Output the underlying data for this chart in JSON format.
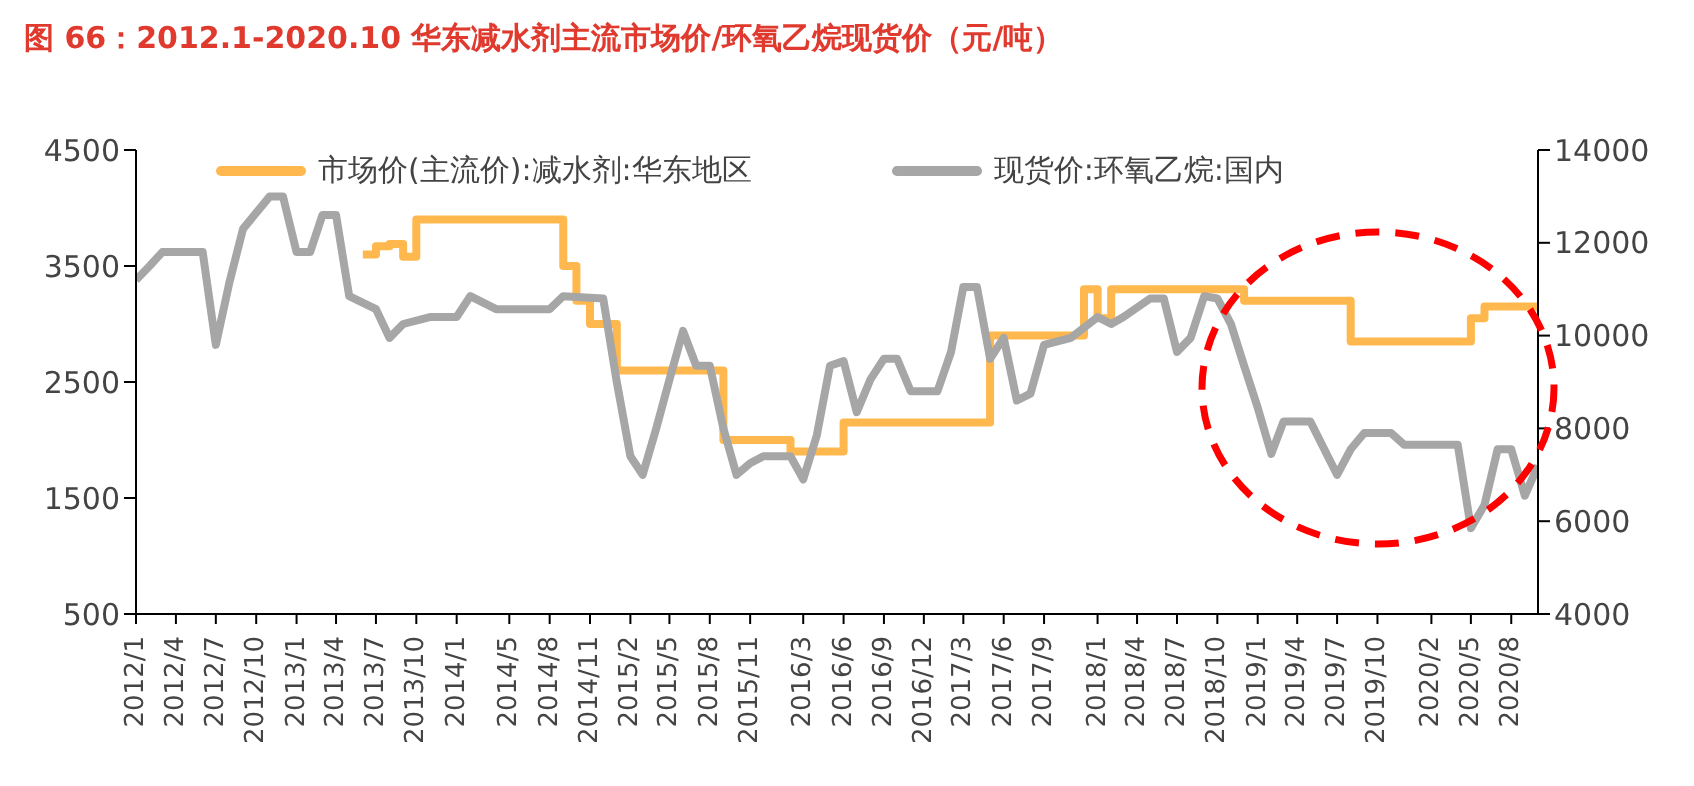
{
  "chart_data": {
    "type": "line",
    "title": "图 66：2012.1-2020.10 华东减水剂主流市场价/环氧乙烷现货价（元/吨）",
    "xlim": [
      "2012-01",
      "2020-10"
    ],
    "xticks": [
      {
        "value": "2012-01",
        "label": "2012/1"
      },
      {
        "value": "2012-04",
        "label": "2012/4"
      },
      {
        "value": "2012-07",
        "label": "2012/7"
      },
      {
        "value": "2012-10",
        "label": "2012/10"
      },
      {
        "value": "2013-01",
        "label": "2013/1"
      },
      {
        "value": "2013-04",
        "label": "2013/4"
      },
      {
        "value": "2013-07",
        "label": "2013/7"
      },
      {
        "value": "2013-10",
        "label": "2013/10"
      },
      {
        "value": "2014-01",
        "label": "2014/1"
      },
      {
        "value": "2014-05",
        "label": "2014/5"
      },
      {
        "value": "2014-08",
        "label": "2014/8"
      },
      {
        "value": "2014-11",
        "label": "2014/11"
      },
      {
        "value": "2015-02",
        "label": "2015/2"
      },
      {
        "value": "2015-05",
        "label": "2015/5"
      },
      {
        "value": "2015-08",
        "label": "2015/8"
      },
      {
        "value": "2015-11",
        "label": "2015/11"
      },
      {
        "value": "2016-03",
        "label": "2016/3"
      },
      {
        "value": "2016-06",
        "label": "2016/6"
      },
      {
        "value": "2016-09",
        "label": "2016/9"
      },
      {
        "value": "2016-12",
        "label": "2016/12"
      },
      {
        "value": "2017-03",
        "label": "2017/3"
      },
      {
        "value": "2017-06",
        "label": "2017/6"
      },
      {
        "value": "2017-09",
        "label": "2017/9"
      },
      {
        "value": "2018-01",
        "label": "2018/1"
      },
      {
        "value": "2018-04",
        "label": "2018/4"
      },
      {
        "value": "2018-07",
        "label": "2018/7"
      },
      {
        "value": "2018-10",
        "label": "2018/10"
      },
      {
        "value": "2019-01",
        "label": "2019/1"
      },
      {
        "value": "2019-04",
        "label": "2019/4"
      },
      {
        "value": "2019-07",
        "label": "2019/7"
      },
      {
        "value": "2019-10",
        "label": "2019/10"
      },
      {
        "value": "2020-02",
        "label": "2020/2"
      },
      {
        "value": "2020-05",
        "label": "2020/5"
      },
      {
        "value": "2020-08",
        "label": "2020/8"
      }
    ],
    "ylim": [
      500,
      4500
    ],
    "yticks": [
      500,
      1500,
      2500,
      3500,
      4500
    ],
    "y2lim": [
      4000,
      14000
    ],
    "y2ticks": [
      4000,
      6000,
      8000,
      10000,
      12000,
      14000
    ],
    "legend": "top",
    "grid": false,
    "marker": "none",
    "series": [
      {
        "name": "市场价(主流价):减水剂:华东地区",
        "type": "step",
        "color": "#ffb84d",
        "x": [
          "2013-06",
          "2013-07",
          "2013-08",
          "2013-09",
          "2013-10",
          "2014-08",
          "2014-09",
          "2014-10",
          "2014-11",
          "2015-01",
          "2015-08",
          "2015-09",
          "2016-01",
          "2016-02",
          "2016-05",
          "2016-06",
          "2017-04",
          "2017-05",
          "2017-11",
          "2017-12",
          "2018-01",
          "2018-02",
          "2018-11",
          "2018-12",
          "2019-07",
          "2019-08",
          "2020-04",
          "2020-05",
          "2020-06",
          "2020-10"
        ],
        "values": [
          3600,
          3670,
          3690,
          3580,
          3900,
          3900,
          3500,
          3200,
          3000,
          2600,
          2600,
          2000,
          2000,
          1900,
          1900,
          2150,
          2150,
          2900,
          2900,
          3300,
          3050,
          3300,
          3300,
          3200,
          3200,
          2850,
          2850,
          3050,
          3150,
          3150
        ]
      },
      {
        "name": "现货价:环氧乙烷:国内",
        "axis": "y2",
        "color": "#a6a6a6",
        "x": [
          "2012-01",
          "2012-02",
          "2012-03",
          "2012-06",
          "2012-07",
          "2012-08",
          "2012-09",
          "2012-11",
          "2012-12",
          "2013-01",
          "2013-02",
          "2013-03",
          "2013-04",
          "2013-05",
          "2013-07",
          "2013-08",
          "2013-09",
          "2013-11",
          "2014-01",
          "2014-02",
          "2014-04",
          "2014-08",
          "2014-09",
          "2014-12",
          "2015-01",
          "2015-02",
          "2015-03",
          "2015-04",
          "2015-05",
          "2015-06",
          "2015-07",
          "2015-08",
          "2015-09",
          "2015-10",
          "2015-11",
          "2015-12",
          "2016-02",
          "2016-03",
          "2016-04",
          "2016-05",
          "2016-06",
          "2016-07",
          "2016-08",
          "2016-09",
          "2016-10",
          "2016-11",
          "2017-01",
          "2017-02",
          "2017-03",
          "2017-04",
          "2017-05",
          "2017-06",
          "2017-07",
          "2017-08",
          "2017-09",
          "2017-11",
          "2018-01",
          "2018-02",
          "2018-03",
          "2018-05",
          "2018-06",
          "2018-07",
          "2018-08",
          "2018-09",
          "2018-10",
          "2018-11",
          "2018-12",
          "2019-01",
          "2019-02",
          "2019-03",
          "2019-05",
          "2019-07",
          "2019-08",
          "2019-09",
          "2019-11",
          "2019-12",
          "2020-04",
          "2020-05",
          "2020-06",
          "2020-07",
          "2020-08",
          "2020-09",
          "2020-10"
        ],
        "values": [
          11200,
          11500,
          11800,
          11800,
          9800,
          11150,
          12300,
          13000,
          13000,
          11800,
          11800,
          12600,
          12600,
          10850,
          10570,
          9950,
          10250,
          10400,
          10400,
          10850,
          10570,
          10570,
          10850,
          10800,
          9000,
          7400,
          7000,
          8000,
          9050,
          10100,
          9350,
          9350,
          8000,
          7000,
          7250,
          7400,
          7400,
          6900,
          7850,
          9350,
          9450,
          8350,
          9050,
          9500,
          9500,
          8800,
          8800,
          9650,
          11050,
          11050,
          9500,
          9950,
          8600,
          8750,
          9800,
          9950,
          10400,
          10250,
          10400,
          10800,
          10800,
          9650,
          9950,
          10850,
          10800,
          10250,
          9350,
          8450,
          7450,
          8150,
          8150,
          7000,
          7550,
          7900,
          7900,
          7650,
          7650,
          5850,
          6350,
          7550,
          7550,
          6550,
          7200
        ]
      }
    ]
  }
}
